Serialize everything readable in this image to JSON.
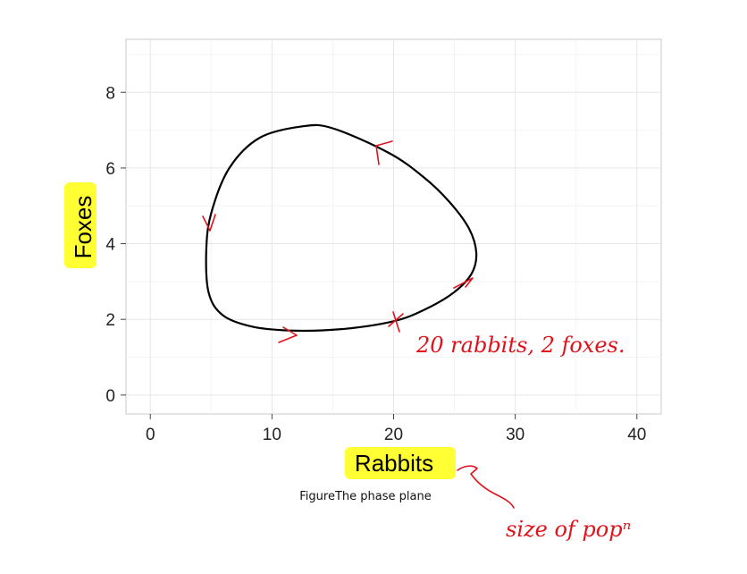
{
  "chart_data": {
    "type": "line",
    "title": "",
    "xlabel": "Rabbits",
    "ylabel": "Foxes",
    "xlim": [
      -2,
      42
    ],
    "ylim": [
      -0.5,
      9.4
    ],
    "xticks": [
      0,
      10,
      20,
      30,
      40
    ],
    "yticks": [
      0,
      2,
      4,
      6,
      8
    ],
    "grid": true,
    "panel_background": "#ffffff",
    "line_color": "#000000",
    "series": [
      {
        "x": [
          20.0,
          22.5,
          24.9,
          26.4,
          26.8,
          26.2,
          24.6,
          22.5,
          19.6,
          15.0,
          12.5,
          9.0,
          6.5,
          5.0,
          4.6,
          4.8,
          6.0,
          8.5,
          12.0,
          16.0,
          20.0
        ],
        "y": [
          1.95,
          2.25,
          2.7,
          3.2,
          3.75,
          4.4,
          5.1,
          5.75,
          6.4,
          7.05,
          7.1,
          6.8,
          6.0,
          4.8,
          3.8,
          2.7,
          2.1,
          1.8,
          1.7,
          1.75,
          1.95
        ]
      }
    ]
  },
  "caption": {
    "label": "Figure",
    "text": "The phase plane"
  },
  "annotations": {
    "ink_color": "#e0121c",
    "highlight_color": "#ffff33",
    "note_point": "20 rabbits, 2 foxes.",
    "note_axis": "size of popⁿ"
  }
}
